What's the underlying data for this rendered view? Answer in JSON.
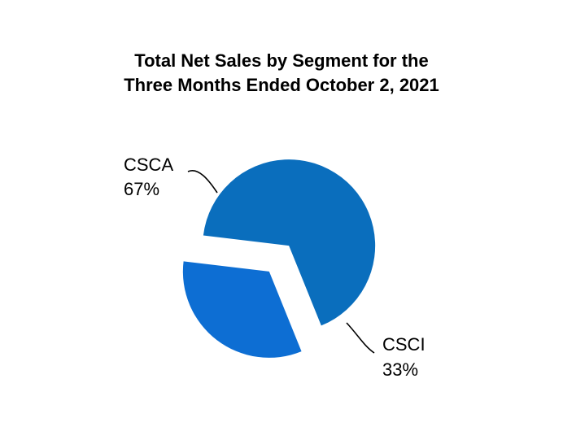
{
  "chart_data": {
    "type": "pie",
    "title_lines": [
      "Total Net Sales by Segment for the",
      "Three Months Ended October 2, 2021"
    ],
    "slices": [
      {
        "label": "CSCA",
        "value_label": "67%",
        "value": 67,
        "color": "#0A6EBD"
      },
      {
        "label": "CSCI",
        "value_label": "33%",
        "value": 33,
        "color": "#0D6ED3"
      }
    ],
    "exploded": true,
    "leader_lines": true
  }
}
